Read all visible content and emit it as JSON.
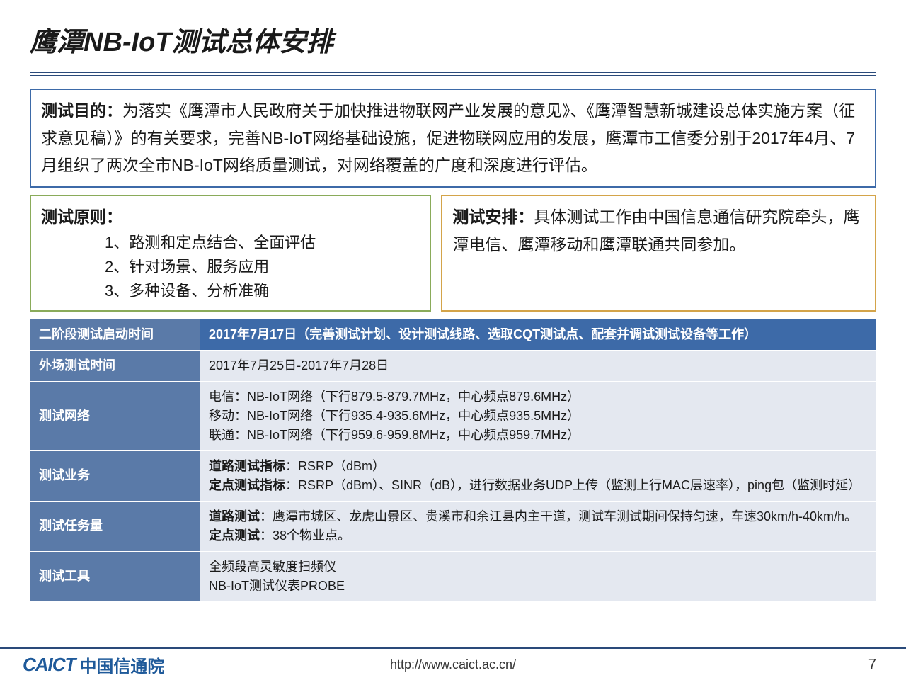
{
  "title": "鹰潭NB-IoT测试总体安排",
  "purpose": {
    "label": "测试目的：",
    "text": "为落实《鹰潭市人民政府关于加快推进物联网产业发展的意见》、《鹰潭智慧新城建设总体实施方案（征求意见稿）》的有关要求，完善NB-IoT网络基础设施，促进物联网应用的发展，鹰潭市工信委分别于2017年4月、7月组织了两次全市NB-IoT网络质量测试，对网络覆盖的广度和深度进行评估。"
  },
  "principles": {
    "label": "测试原则：",
    "items": [
      "1、路测和定点结合、全面评估",
      "2、针对场景、服务应用",
      "3、多种设备、分析准确"
    ]
  },
  "arrange": {
    "label": "测试安排：",
    "text": "具体测试工作由中国信息通信研究院牵头，鹰潭电信、鹰潭移动和鹰潭联通共同参加。"
  },
  "table": {
    "rows": [
      {
        "left": "二阶段测试启动时间",
        "right_html": "2017年7月17日（完善测试计划、设计测试线路、选取CQT测试点、配套并调试测试设备等工作）",
        "header": true
      },
      {
        "left": "外场测试时间",
        "right_html": "2017年7月25日-2017年7月28日"
      },
      {
        "left": "测试网络",
        "right_html": "电信：NB-IoT网络（下行879.5-879.7MHz，中心频点879.6MHz）<br>移动：NB-IoT网络（下行935.4-935.6MHz，中心频点935.5MHz）<br>联通：NB-IoT网络（下行959.6-959.8MHz，中心频点959.7MHz）"
      },
      {
        "left": "测试业务",
        "right_html": "<span class=\"b\">道路测试指标</span>：RSRP（dBm）<br><span class=\"b\">定点测试指标</span>：RSRP（dBm）、SINR（dB），进行数据业务UDP上传（监测上行MAC层速率），ping包（监测时延）"
      },
      {
        "left": "测试任务量",
        "right_html": "<span class=\"b\">道路测试</span>：鹰潭市城区、龙虎山景区、贵溪市和余江县内主干道，测试车测试期间保持匀速，车速30km/h-40km/h。<br><span class=\"b\">定点测试</span>：38个物业点。"
      },
      {
        "left": "测试工具",
        "right_html": "全频段高灵敏度扫频仪<br>NB-IoT测试仪表PROBE"
      }
    ]
  },
  "footer": {
    "logo_mark": "CAICT",
    "logo_cn": "中国信通院",
    "url": "http://www.caict.ac.cn/",
    "page": "7"
  },
  "colors": {
    "title_rule": "#2a4a7a",
    "border_purpose": "#3d6aa8",
    "border_principles": "#8aab5a",
    "border_arrange": "#d4a44a",
    "table_header_left": "#5a7aa8",
    "table_header_right": "#3d6aa8",
    "table_body_right": "#e4e8f0",
    "logo": "#1f5a9a"
  }
}
